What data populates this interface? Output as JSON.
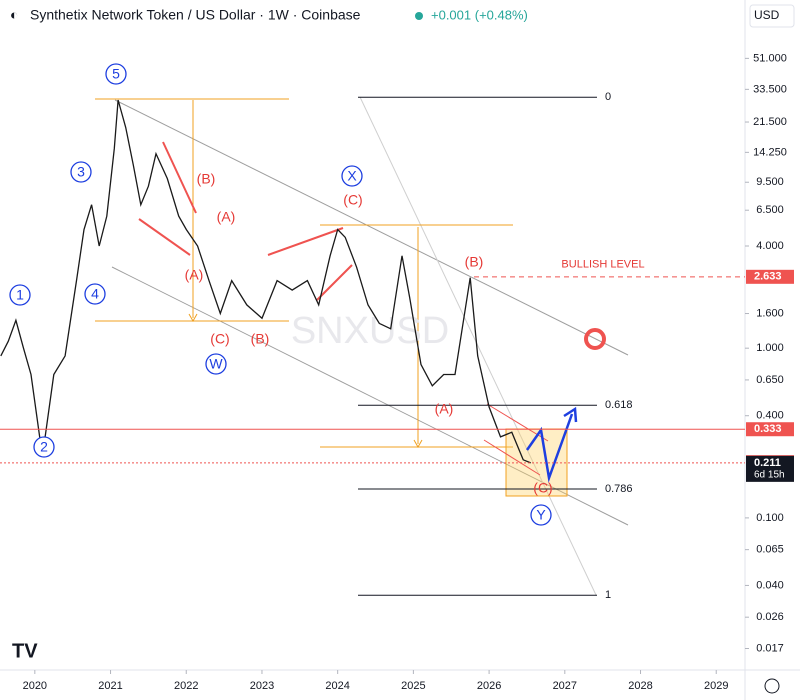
{
  "header": {
    "title": "Synthetix Network Token / US Dollar · 1W · Coinbase",
    "change": "+0.001 (+0.48%)",
    "currency": "USD"
  },
  "chart_data": {
    "type": "line",
    "log_scale": true,
    "watermark": "SNXUSD",
    "color": "#1a1a1a",
    "x": [
      2019.55,
      2019.65,
      2019.75,
      2019.85,
      2019.95,
      2020.1,
      2020.25,
      2020.4,
      2020.55,
      2020.65,
      2020.75,
      2020.85,
      2020.95,
      2021.05,
      2021.1,
      2021.2,
      2021.3,
      2021.4,
      2021.5,
      2021.6,
      2021.75,
      2021.9,
      2022.0,
      2022.15,
      2022.3,
      2022.45,
      2022.6,
      2022.8,
      2023.0,
      2023.2,
      2023.4,
      2023.6,
      2023.75,
      2023.9,
      2024.0,
      2024.1,
      2024.25,
      2024.4,
      2024.55,
      2024.7,
      2024.85,
      2024.95,
      2025.1,
      2025.25,
      2025.4,
      2025.55,
      2025.75,
      2025.85,
      2026.0,
      2026.15,
      2026.3,
      2026.45,
      2026.55
    ],
    "values": [
      0.9,
      1.1,
      1.46,
      1.0,
      0.7,
      0.23,
      0.7,
      0.9,
      2.5,
      5,
      7,
      4,
      6,
      15,
      29,
      20,
      12,
      7,
      9,
      14,
      10,
      6,
      5,
      4,
      2.5,
      1.6,
      2.5,
      1.8,
      1.5,
      2.5,
      2.2,
      2.5,
      1.8,
      3.5,
      5,
      4.5,
      3,
      1.8,
      1.4,
      1.3,
      3.5,
      2.0,
      0.8,
      0.6,
      0.7,
      0.7,
      2.6,
      0.9,
      0.45,
      0.3,
      0.32,
      0.22,
      0.211
    ],
    "xlim": [
      2019.54,
      2029.38
    ],
    "xticks": [
      2020,
      2021,
      2022,
      2023,
      2024,
      2025,
      2026,
      2027,
      2028,
      2029
    ],
    "ylim": [
      0.0127,
      77
    ],
    "yticks": [
      {
        "value": 51,
        "label": "51.000"
      },
      {
        "value": 33.5,
        "label": "33.500"
      },
      {
        "value": 21.5,
        "label": "21.500"
      },
      {
        "value": 14.25,
        "label": "14.250"
      },
      {
        "value": 9.5,
        "label": "9.500"
      },
      {
        "value": 6.5,
        "label": "6.500"
      },
      {
        "value": 4,
        "label": "4.000"
      },
      {
        "value": 1.6,
        "label": "1.600"
      },
      {
        "value": 1,
        "label": "1.000"
      },
      {
        "value": 0.65,
        "label": "0.650"
      },
      {
        "value": 0.4,
        "label": "0.400"
      },
      {
        "value": 0.1,
        "label": "0.100"
      },
      {
        "value": 0.065,
        "label": "0.065"
      },
      {
        "value": 0.04,
        "label": "0.040"
      },
      {
        "value": 0.026,
        "label": "0.026"
      },
      {
        "value": 0.017,
        "label": "0.017"
      }
    ],
    "levels": [
      {
        "name": "BULLISH LEVEL",
        "value": 2.633
      },
      {
        "value": 0.333
      },
      {
        "value": 0.213
      },
      {
        "value": 0.211,
        "countdown": "6d 15h"
      }
    ],
    "fib": [
      {
        "label": "0",
        "price": 30.1
      },
      {
        "label": "0.618",
        "price": 0.461
      },
      {
        "label": "0.786",
        "price": 0.148
      },
      {
        "label": "1",
        "price": 0.035
      }
    ],
    "wave_labels": [
      "5",
      "3",
      "1",
      "4",
      "2",
      "X",
      "W",
      "Y"
    ],
    "abc_labels": [
      "(B)",
      "(A)",
      "(A)",
      "(C)",
      "(B)",
      "(C)",
      "(B)",
      "(A)",
      "(C)"
    ]
  }
}
